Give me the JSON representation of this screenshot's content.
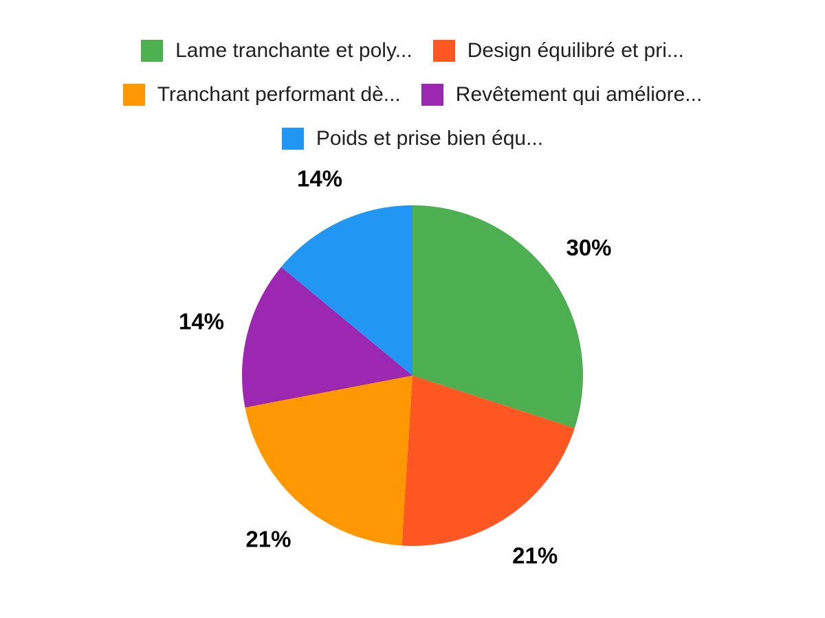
{
  "chart_data": {
    "type": "pie",
    "title": "",
    "labels": [
      "Lame tranchante et poly...",
      "Design équilibré et pri...",
      "Tranchant performant dè...",
      "Revêtement qui améliore...",
      "Poids et prise bien équ..."
    ],
    "values": [
      30,
      21,
      21,
      14,
      14
    ],
    "percent_labels": [
      "30%",
      "21%",
      "21%",
      "14%",
      "14%"
    ],
    "colors": [
      "#4caf50",
      "#ff5722",
      "#ff9800",
      "#9c27b0",
      "#2196f3"
    ],
    "start_angle_deg": 0,
    "direction": "clockwise",
    "legend_position": "top",
    "legend_rows": [
      [
        0,
        1
      ],
      [
        2,
        3
      ],
      [
        4
      ]
    ],
    "background": "#ffffff",
    "slice_label_color": "#000000",
    "legend_text_color": "#212121"
  }
}
